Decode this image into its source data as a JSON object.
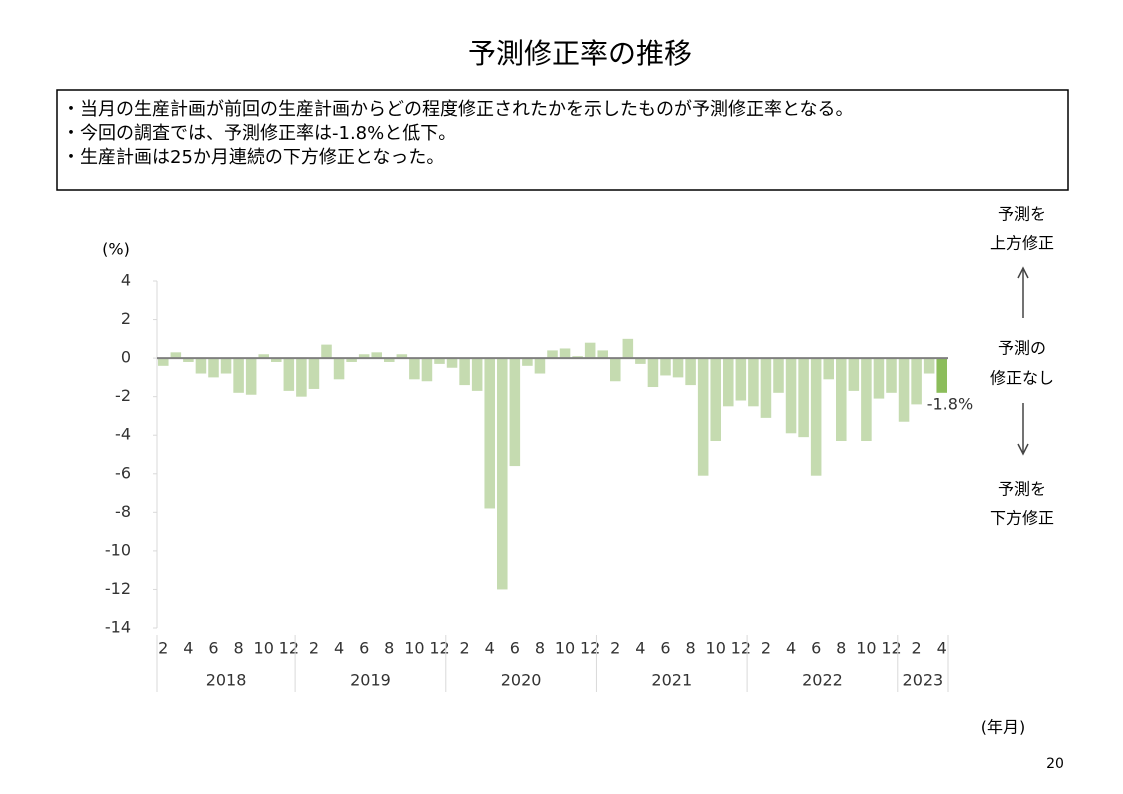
{
  "page_title": "予測修正率の推移",
  "notes": [
    "・当月の生産計画が前回の生産計画からどの程度修正されたかを示したものが予測修正率となる。",
    "・今回の調査では、予測修正率は-1.8%と低下。",
    "・生産計画は25か月連続の下方修正となった。"
  ],
  "page_number": "20",
  "side_labels": [
    [
      "予測を",
      "上方修正"
    ],
    [
      "予測の",
      "修正なし"
    ],
    [
      "予測を",
      "下方修正"
    ]
  ],
  "chart_data": {
    "type": "bar",
    "y_label": "(%)",
    "x_label": "(年月)",
    "categories": [
      "2",
      null,
      "4",
      null,
      "6",
      null,
      "8",
      null,
      "10",
      null,
      "12",
      null,
      "2",
      null,
      "4",
      null,
      "6",
      null,
      "8",
      null,
      "10",
      null,
      "12",
      null,
      "2",
      null,
      "4",
      null,
      "6",
      null,
      "8",
      null,
      "10",
      null,
      "12",
      null,
      "2",
      null,
      "4",
      null,
      "6",
      null,
      "8",
      null,
      "10",
      null,
      "12",
      null,
      "2",
      null,
      "4",
      null,
      "6",
      null,
      "8",
      null,
      "10",
      null,
      "12",
      null,
      "2",
      null,
      "4"
    ],
    "years": [
      "2018",
      "2019",
      "2020",
      "2021",
      "2022",
      "2023"
    ],
    "values": [
      -0.4,
      0.3,
      -0.2,
      -0.8,
      -1.0,
      -0.8,
      -1.8,
      -1.9,
      0.2,
      -0.2,
      -1.7,
      -2.0,
      -1.6,
      0.7,
      -1.1,
      -0.2,
      0.2,
      0.3,
      -0.2,
      0.2,
      -1.1,
      -1.2,
      -0.3,
      -0.5,
      -1.4,
      -1.7,
      -7.8,
      -12.0,
      -5.6,
      -0.4,
      -0.8,
      0.4,
      0.5,
      0.1,
      0.8,
      0.4,
      -1.2,
      1.0,
      -0.3,
      -1.5,
      -0.9,
      -1.0,
      -1.4,
      -6.1,
      -4.3,
      -2.5,
      -2.2,
      -2.5,
      -3.1,
      -1.8,
      -3.9,
      -4.1,
      -6.1,
      -1.1,
      -4.3,
      -1.7,
      -4.3,
      -2.1,
      -1.8,
      -3.3,
      -2.4,
      -0.8,
      -1.8
    ],
    "value_labels": [
      null,
      null,
      null,
      null,
      null,
      null,
      null,
      null,
      null,
      null,
      null,
      null,
      null,
      null,
      null,
      null,
      null,
      null,
      null,
      null,
      null,
      null,
      null,
      null,
      null,
      null,
      null,
      null,
      null,
      null,
      null,
      null,
      null,
      null,
      null,
      null,
      null,
      null,
      null,
      null,
      null,
      null,
      null,
      null,
      null,
      null,
      null,
      null,
      null,
      null,
      null,
      null,
      null,
      null,
      null,
      null,
      null,
      null,
      null,
      null,
      null,
      null,
      "-1.8%"
    ],
    "color": "#c5dbb0",
    "last_color": "#8cbd5b",
    "ylim": [
      -14,
      4
    ],
    "yticks": [
      4,
      2,
      0,
      -2,
      -4,
      -6,
      -8,
      -10,
      -12,
      -14
    ]
  }
}
